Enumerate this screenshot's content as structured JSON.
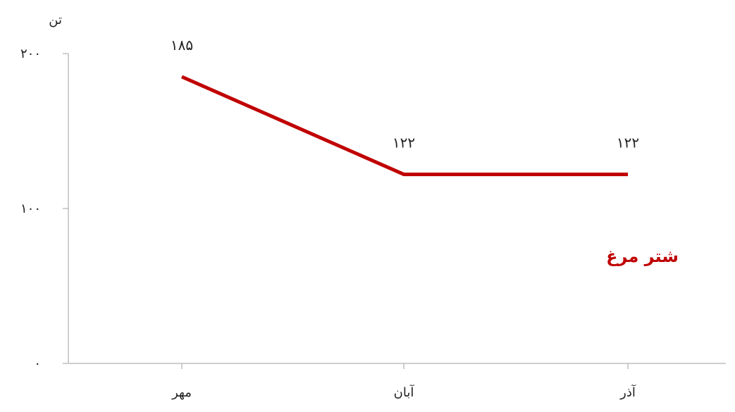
{
  "chart_data": {
    "type": "line",
    "categories": [
      "مهر",
      "آبان",
      "آذر"
    ],
    "series": [
      {
        "name": "شتر مرغ",
        "values": [
          185,
          122,
          122
        ],
        "value_labels": [
          "۱۸۵",
          "۱۲۲",
          "۱۲۲"
        ],
        "color": "#c00000"
      }
    ],
    "ylabel": "تن",
    "ylim": [
      0,
      200
    ],
    "yticks": [
      0,
      100,
      200
    ],
    "ytick_labels": [
      "۰",
      "۱۰۰",
      "۲۰۰"
    ],
    "grid": false,
    "axis_color": "#bfbfbf"
  }
}
